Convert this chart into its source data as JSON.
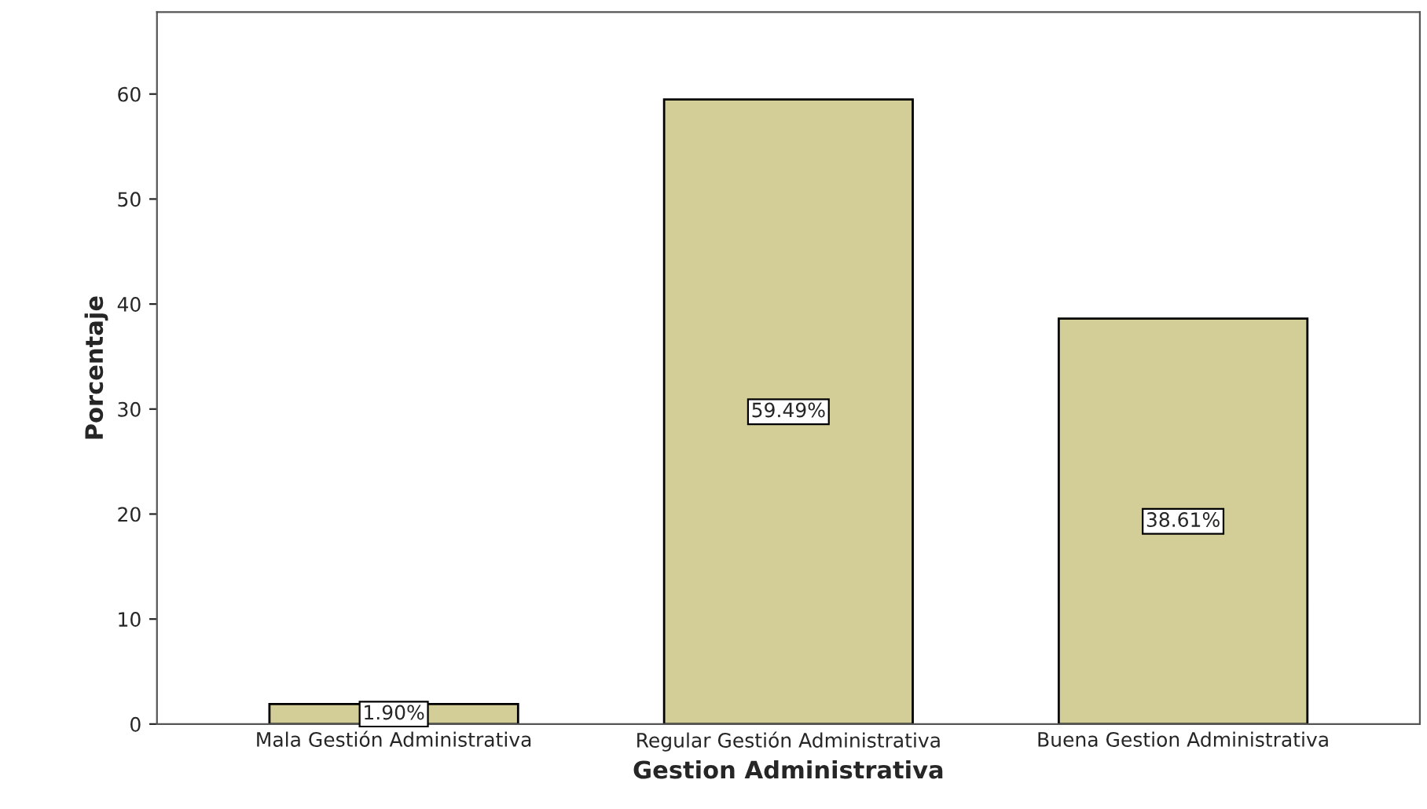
{
  "chart_data": {
    "type": "bar",
    "xlabel": "Gestion Administrativa",
    "ylabel": "Porcentaje",
    "categories": [
      "Mala Gestión Administrativa",
      "Regular Gestión Administrativa",
      "Buena Gestion Administrativa"
    ],
    "values": [
      1.9,
      59.49,
      38.61
    ],
    "value_labels": [
      "1.90%",
      "59.49%",
      "38.61%"
    ],
    "color": "#d3ce98",
    "ylim": [
      0,
      67.8
    ],
    "yticks": [
      0,
      10,
      20,
      30,
      40,
      50,
      60
    ],
    "grid": false,
    "legend": false
  }
}
